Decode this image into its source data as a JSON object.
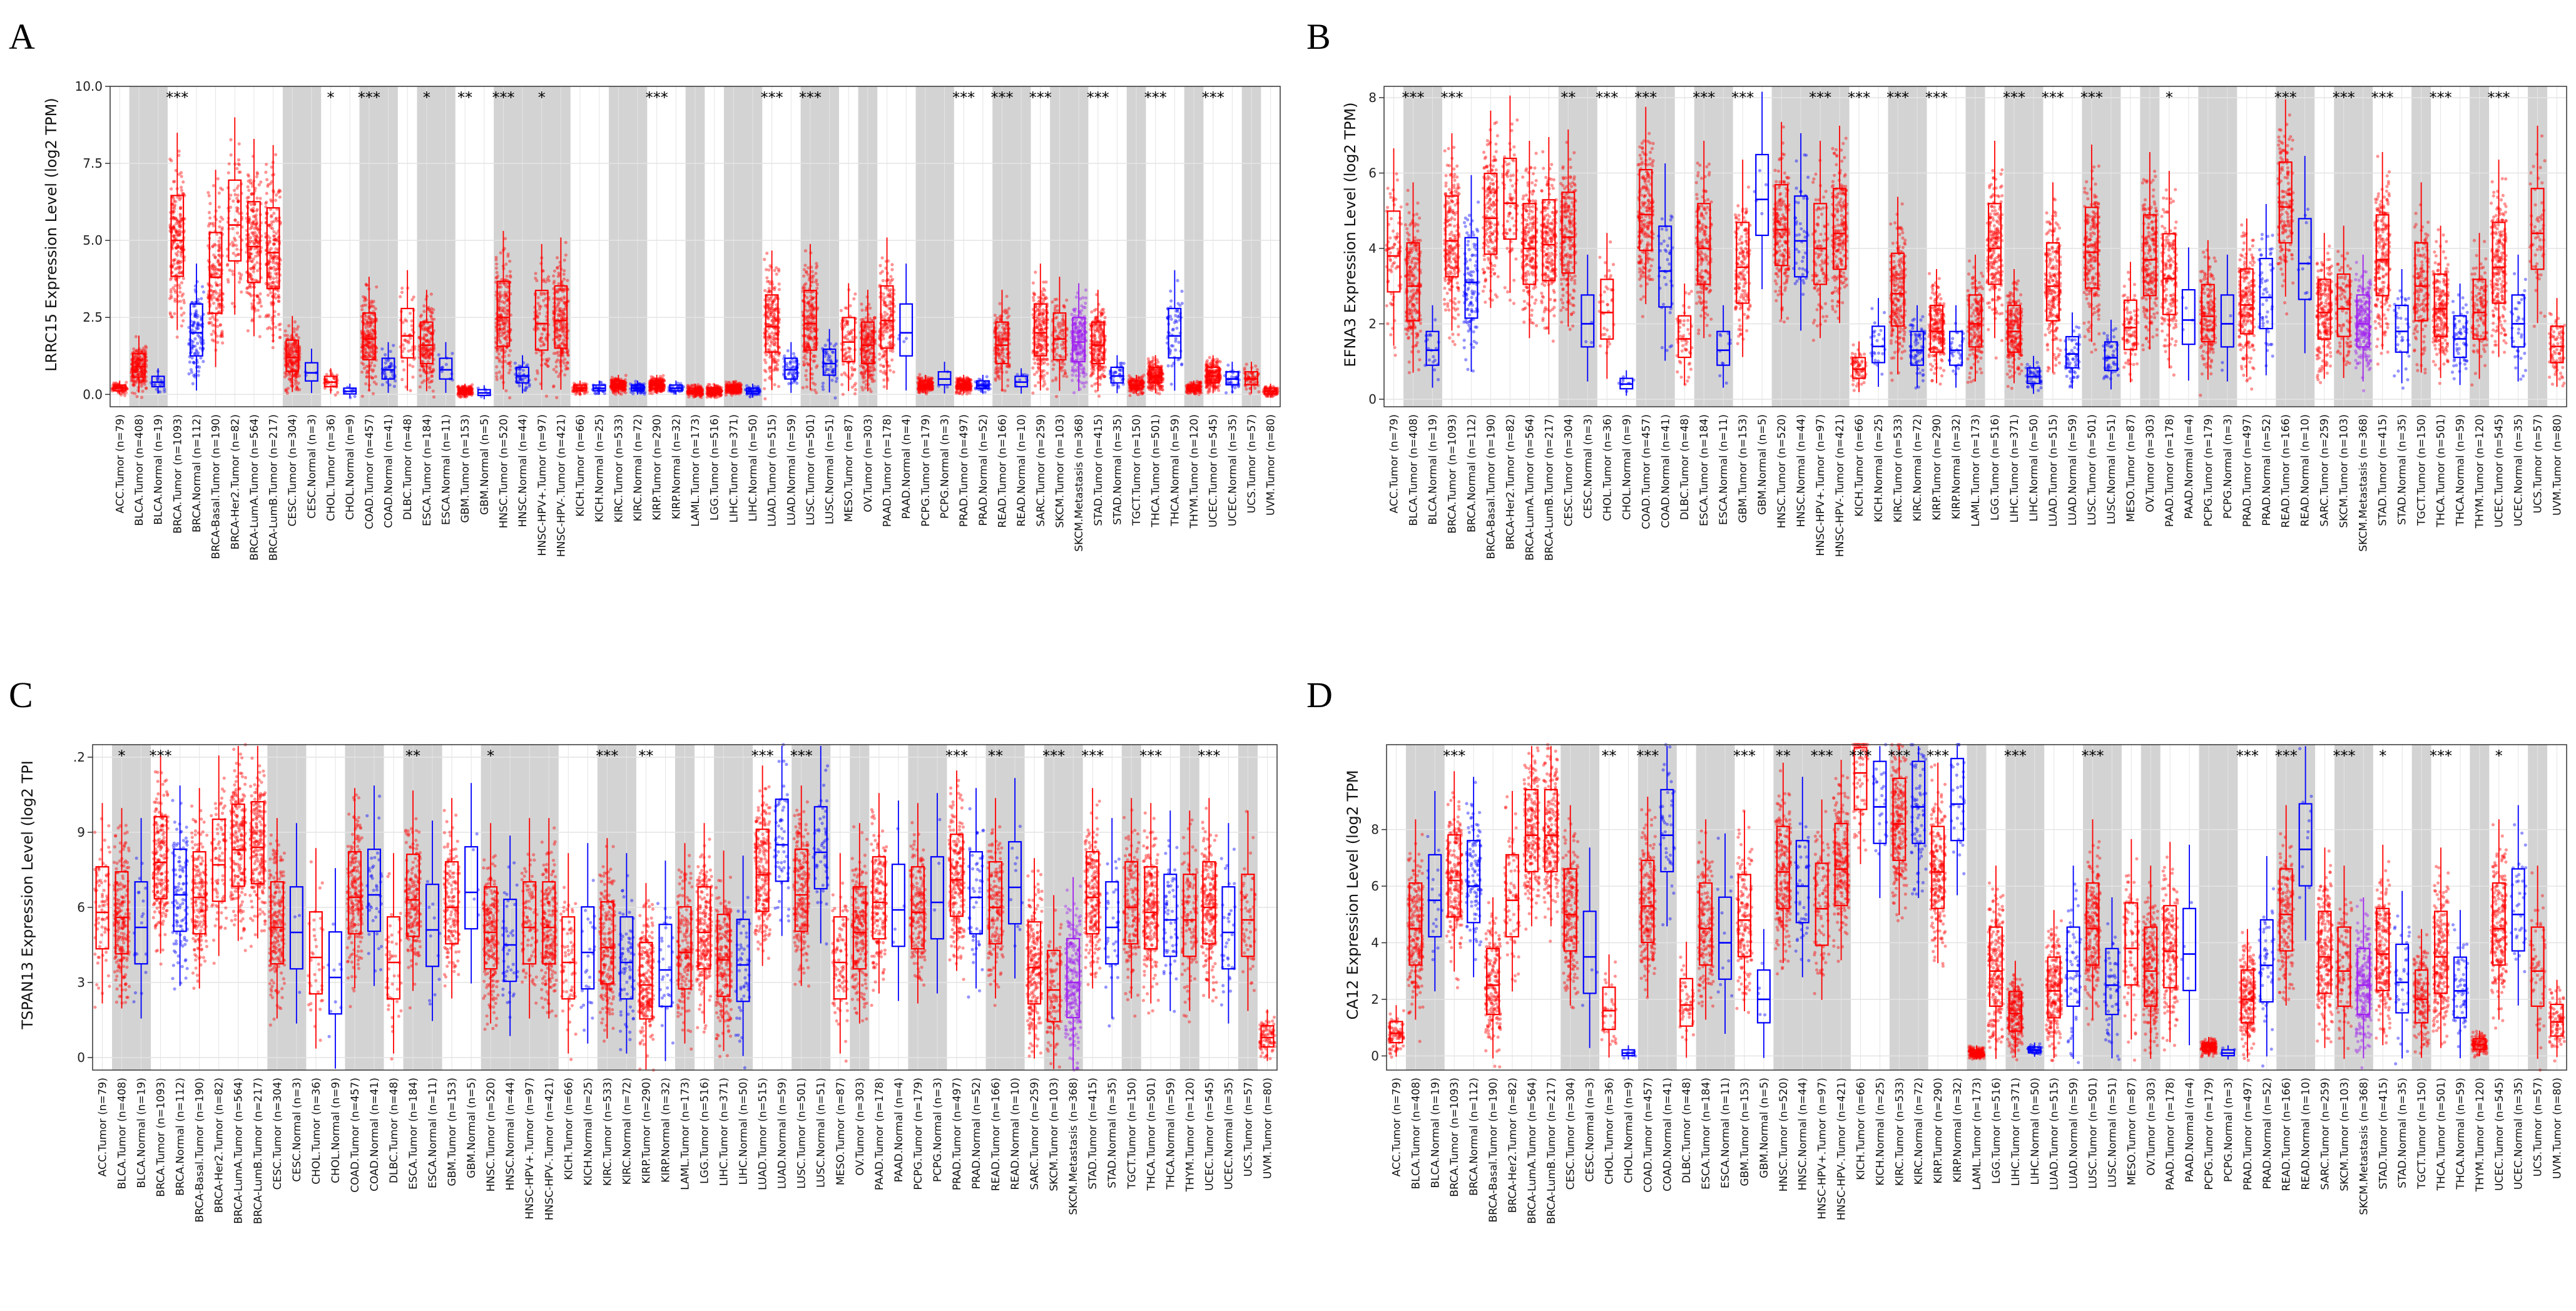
{
  "categories": [
    "ACC.Tumor (n=79)",
    "BLCA.Tumor (n=408)",
    "BLCA.Normal (n=19)",
    "BRCA.Tumor (n=1093)",
    "BRCA.Normal (n=112)",
    "BRCA-Basal.Tumor (n=190)",
    "BRCA-Her2.Tumor (n=82)",
    "BRCA-LumA.Tumor (n=564)",
    "BRCA-LumB.Tumor (n=217)",
    "CESC.Tumor (n=304)",
    "CESC.Normal (n=3)",
    "CHOL.Tumor (n=36)",
    "CHOL.Normal (n=9)",
    "COAD.Tumor (n=457)",
    "COAD.Normal (n=41)",
    "DLBC.Tumor (n=48)",
    "ESCA.Tumor (n=184)",
    "ESCA.Normal (n=11)",
    "GBM.Tumor (n=153)",
    "GBM.Normal (n=5)",
    "HNSC.Tumor (n=520)",
    "HNSC.Normal (n=44)",
    "HNSC-HPV+.Tumor (n=97)",
    "HNSC-HPV-.Tumor (n=421)",
    "KICH.Tumor (n=66)",
    "KICH.Normal (n=25)",
    "KIRC.Tumor (n=533)",
    "KIRC.Normal (n=72)",
    "KIRP.Tumor (n=290)",
    "KIRP.Normal (n=32)",
    "LAML.Tumor (n=173)",
    "LGG.Tumor (n=516)",
    "LIHC.Tumor (n=371)",
    "LIHC.Normal (n=50)",
    "LUAD.Tumor (n=515)",
    "LUAD.Normal (n=59)",
    "LUSC.Tumor (n=501)",
    "LUSC.Normal (n=51)",
    "MESO.Tumor (n=87)",
    "OV.Tumor (n=303)",
    "PAAD.Tumor (n=178)",
    "PAAD.Normal (n=4)",
    "PCPG.Tumor (n=179)",
    "PCPG.Normal (n=3)",
    "PRAD.Tumor (n=497)",
    "PRAD.Normal (n=52)",
    "READ.Tumor (n=166)",
    "READ.Normal (n=10)",
    "SARC.Tumor (n=259)",
    "SKCM.Tumor (n=103)",
    "SKCM.Metastasis (n=368)",
    "STAD.Tumor (n=415)",
    "STAD.Normal (n=35)",
    "TGCT.Tumor (n=150)",
    "THCA.Tumor (n=501)",
    "THCA.Normal (n=59)",
    "THYM.Tumor (n=120)",
    "UCEC.Tumor (n=545)",
    "UCEC.Normal (n=35)",
    "UCS.Tumor (n=57)",
    "UVM.Tumor (n=80)"
  ],
  "colors": {
    "tumor": "#ff0000",
    "normal": "#0000ff",
    "metastasis": "#a020f0",
    "shade": "#d3d3d3",
    "grid": "#e4e4e4"
  },
  "chart_data": [
    {
      "type": "box",
      "panel": "A",
      "title": "",
      "ylabel": "LRRC15 Expression Level (log2 TPM)",
      "yticks": [
        0.0,
        2.5,
        5.0,
        7.5,
        10.0
      ],
      "tick_labels": [
        "0.0",
        "2.5",
        "5.0",
        "7.5",
        "10.0"
      ],
      "ylim": [
        -0.4,
        10
      ],
      "significance": [
        "",
        "",
        "",
        "***",
        "",
        "",
        "",
        "",
        "",
        "",
        "",
        "*",
        "",
        "***",
        "",
        "",
        "*",
        "",
        "**",
        "",
        "***",
        "",
        "*",
        "",
        "",
        "",
        "",
        "",
        "***",
        "",
        "",
        "",
        "",
        "",
        "***",
        "",
        "***",
        "",
        "",
        "",
        "",
        "",
        "",
        "",
        "***",
        "",
        "***",
        "",
        "***",
        "",
        "",
        "***",
        "",
        "",
        "***",
        "",
        "",
        "***",
        "",
        "",
        ""
      ],
      "medians": [
        0.2,
        0.9,
        0.4,
        5.0,
        2.0,
        3.8,
        5.5,
        4.8,
        4.6,
        1.2,
        0.7,
        0.4,
        0.1,
        1.8,
        0.8,
        1.9,
        1.6,
        0.8,
        0.1,
        0.05,
        2.5,
        0.6,
        2.3,
        2.4,
        0.2,
        0.2,
        0.3,
        0.2,
        0.3,
        0.2,
        0.1,
        0.1,
        0.2,
        0.1,
        2.2,
        0.8,
        2.3,
        1.0,
        1.7,
        1.6,
        2.4,
        2.0,
        0.3,
        0.5,
        0.3,
        0.3,
        1.6,
        0.4,
        2.0,
        1.8,
        1.7,
        1.6,
        0.6,
        0.3,
        0.6,
        1.9,
        0.2,
        0.6,
        0.5,
        0.5,
        0.1
      ]
    },
    {
      "type": "box",
      "panel": "B",
      "title": "",
      "ylabel": "EFNA3 Expression Level (log2 TPM)",
      "yticks": [
        0,
        2,
        4,
        6,
        8
      ],
      "tick_labels": [
        "0",
        "2",
        "4",
        "6",
        "8"
      ],
      "ylim": [
        -0.2,
        8.3
      ],
      "significance": [
        "",
        "***",
        "",
        "***",
        "",
        "",
        "",
        "",
        "",
        "**",
        "",
        "***",
        "",
        "***",
        "",
        "",
        "***",
        "",
        "***",
        "",
        "",
        "",
        "***",
        "",
        "***",
        "",
        "***",
        "",
        "***",
        "",
        "",
        "",
        "***",
        "",
        "***",
        "",
        "***",
        "",
        "",
        "",
        "*",
        "",
        "",
        "",
        "",
        "",
        "***",
        "",
        "",
        "***",
        "",
        "***",
        "",
        "",
        "***",
        "",
        "",
        "***",
        "",
        "",
        ""
      ],
      "medians": [
        3.8,
        3.0,
        1.3,
        4.2,
        3.1,
        4.8,
        5.2,
        4.0,
        4.1,
        4.3,
        2.0,
        2.3,
        0.4,
        4.9,
        3.4,
        1.6,
        4.0,
        1.3,
        3.5,
        5.3,
        4.5,
        4.2,
        4.0,
        4.4,
        0.8,
        1.4,
        2.8,
        1.3,
        1.8,
        1.3,
        2.0,
        4.0,
        1.8,
        0.6,
        3.0,
        1.2,
        3.9,
        1.1,
        1.9,
        3.7,
        3.2,
        2.1,
        2.2,
        2.0,
        2.5,
        2.7,
        5.1,
        3.6,
        2.3,
        2.4,
        2.0,
        3.7,
        1.8,
        3.0,
        2.4,
        1.6,
        2.3,
        3.5,
        2.0,
        4.4,
        1.4
      ]
    },
    {
      "type": "box",
      "panel": "C",
      "title": "",
      "ylabel": "TSPAN13 Expression Level (log2 TPI",
      "yticks": [
        0,
        3,
        6,
        9,
        12
      ],
      "tick_labels": [
        "0",
        "3",
        "6",
        "9",
        ".2"
      ],
      "ylim": [
        -0.5,
        12.5
      ],
      "significance": [
        "",
        "*",
        "",
        "***",
        "",
        "",
        "",
        "",
        "",
        "",
        "",
        "",
        "",
        "",
        "",
        "",
        "**",
        "",
        "",
        "",
        "*",
        "",
        "",
        "",
        "",
        "",
        "***",
        "",
        "**",
        "",
        "",
        "",
        "",
        "",
        "***",
        "",
        "***",
        "",
        "",
        "",
        "",
        "",
        "",
        "",
        "***",
        "",
        "**",
        "",
        "",
        "***",
        "",
        "***",
        "",
        "",
        "***",
        "",
        "",
        "***",
        "",
        "",
        ""
      ],
      "medians": [
        5.8,
        5.6,
        5.2,
        7.8,
        6.5,
        6.4,
        7.7,
        8.3,
        8.4,
        5.2,
        5.0,
        4.0,
        3.2,
        6.4,
        6.5,
        3.8,
        6.3,
        5.1,
        6.0,
        6.6,
        5.0,
        4.5,
        5.2,
        5.2,
        3.8,
        4.2,
        4.4,
        3.8,
        2.9,
        3.5,
        4.2,
        5.0,
        3.9,
        3.7,
        7.3,
        8.5,
        6.5,
        8.2,
        3.8,
        5.0,
        6.2,
        5.9,
        5.8,
        6.2,
        7.1,
        6.4,
        6.0,
        6.8,
        3.6,
        2.7,
        3.0,
        6.4,
        5.2,
        6.0,
        5.8,
        5.5,
        5.5,
        6.0,
        5.0,
        5.5,
        0.8
      ]
    },
    {
      "type": "box",
      "panel": "D",
      "title": "",
      "ylabel": "CA12 Expression Level (log2 TPM",
      "yticks": [
        0,
        2,
        4,
        6,
        8
      ],
      "tick_labels": [
        "0",
        "2",
        "4",
        "6",
        "8"
      ],
      "ylim": [
        -0.5,
        11
      ],
      "significance": [
        "",
        "",
        "",
        "***",
        "",
        "",
        "",
        "",
        "",
        "",
        "",
        "**",
        "",
        "***",
        "",
        "",
        "",
        "",
        "***",
        "",
        "**",
        "",
        "***",
        "",
        "***",
        "",
        "***",
        "",
        "***",
        "",
        "",
        "",
        "***",
        "",
        "",
        "",
        "***",
        "",
        "",
        "",
        "",
        "",
        "",
        "",
        "***",
        "",
        "***",
        "",
        "",
        "***",
        "",
        "*",
        "",
        "",
        "***",
        "",
        "",
        "*",
        "",
        "",
        ""
      ],
      "medians": [
        0.8,
        4.5,
        5.5,
        6.2,
        6.0,
        2.5,
        5.5,
        7.8,
        7.8,
        5.0,
        3.5,
        1.6,
        0.1,
        5.3,
        7.8,
        1.8,
        4.5,
        4.0,
        4.8,
        2.0,
        6.5,
        6.0,
        5.2,
        6.6,
        10.0,
        8.8,
        8.2,
        8.8,
        6.5,
        8.9,
        0.1,
        3.0,
        1.5,
        0.2,
        2.3,
        3.0,
        4.5,
        2.5,
        3.8,
        3.0,
        3.7,
        3.6,
        0.3,
        0.1,
        2.0,
        3.2,
        5.0,
        7.3,
        3.5,
        3.0,
        2.5,
        3.6,
        2.6,
        2.0,
        3.5,
        2.3,
        0.4,
        4.5,
        5.0,
        3.0,
        1.2
      ]
    }
  ]
}
